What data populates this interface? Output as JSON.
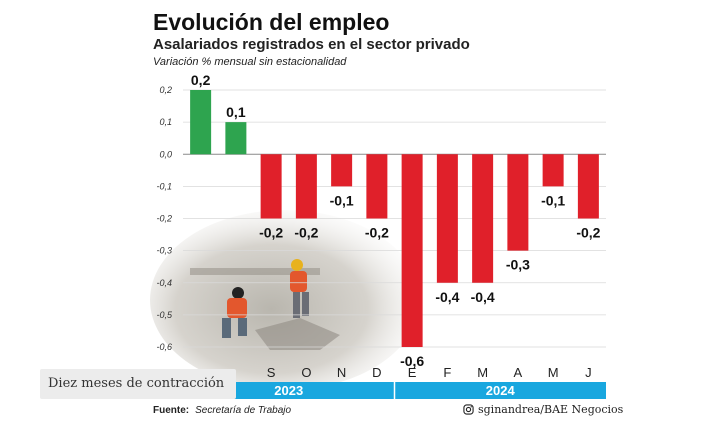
{
  "title": "Evolución del empleo",
  "subtitle": "Asalariados registrados en el sector privado",
  "unit_label": "Variación % mensual sin estacionalidad",
  "caption": "Diez meses de contracción",
  "source_label": "Fuente:",
  "source_text": "Secretaría de Trabajo",
  "credit": "sginandrea/BAE Negocios",
  "credit_icon": "instagram-icon",
  "colors": {
    "positive": "#2ea44f",
    "negative": "#e0202a",
    "year_band": "#19a7df",
    "grid": "#d9d9d9"
  },
  "chart_data": {
    "type": "bar",
    "categories": [
      "",
      "",
      "S",
      "O",
      "N",
      "D",
      "E",
      "F",
      "M",
      "A",
      "M",
      "J"
    ],
    "values": [
      0.2,
      0.1,
      -0.2,
      -0.2,
      -0.1,
      -0.2,
      -0.6,
      -0.4,
      -0.4,
      -0.3,
      -0.1,
      -0.2
    ],
    "data_labels": [
      "0,2",
      "0,1",
      "-0,2",
      "-0,2",
      "-0,1",
      "-0,2",
      "-0,6",
      "-0,4",
      "-0,4",
      "-0,3",
      "-0,1",
      "-0,2"
    ],
    "y_ticks": [
      "0,2",
      "0,1",
      "0,0",
      "-0,1",
      "-0,2",
      "-0,3",
      "-0,4",
      "-0,5",
      "-0,6"
    ],
    "y_tick_values": [
      0.2,
      0.1,
      0,
      -0.1,
      -0.2,
      -0.3,
      -0.4,
      -0.5,
      -0.6
    ],
    "ylim": [
      -0.6,
      0.2
    ],
    "grid": true,
    "year_groups": [
      {
        "label": "2023",
        "start": 0,
        "end": 5
      },
      {
        "label": "2024",
        "start": 6,
        "end": 11
      }
    ],
    "xlabel": "",
    "ylabel": ""
  }
}
